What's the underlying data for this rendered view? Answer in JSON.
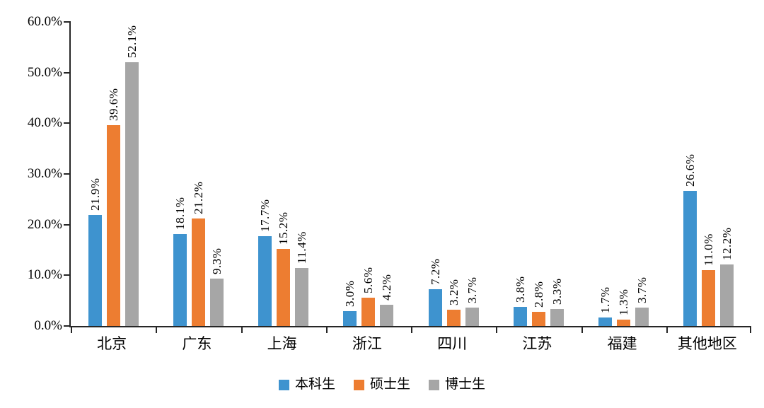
{
  "chart_data": {
    "type": "bar",
    "title": "",
    "categories": [
      "北京",
      "广东",
      "上海",
      "浙江",
      "四川",
      "江苏",
      "福建",
      "其他地区"
    ],
    "series": [
      {
        "name": "本科生",
        "color": "#3E93CF",
        "values": [
          21.9,
          18.1,
          17.7,
          3.0,
          7.2,
          3.8,
          1.7,
          26.6
        ]
      },
      {
        "name": "硕士生",
        "color": "#ED7D31",
        "values": [
          39.6,
          21.2,
          15.2,
          5.6,
          3.2,
          2.8,
          1.3,
          11.0
        ]
      },
      {
        "name": "博士生",
        "color": "#A6A6A6",
        "values": [
          52.1,
          9.3,
          11.4,
          4.2,
          3.7,
          3.3,
          3.7,
          12.2
        ]
      }
    ],
    "ylim": [
      0,
      60
    ],
    "y_ticks": [
      "0.0%",
      "10.0%",
      "20.0%",
      "30.0%",
      "40.0%",
      "50.0%",
      "60.0%"
    ],
    "value_suffix": "%",
    "data_labels": "rotated-90-above-bar",
    "grid": false,
    "legend_position": "bottom",
    "axis_color": "#262626",
    "text_color": "#000000",
    "background": "#FFFFFF"
  }
}
